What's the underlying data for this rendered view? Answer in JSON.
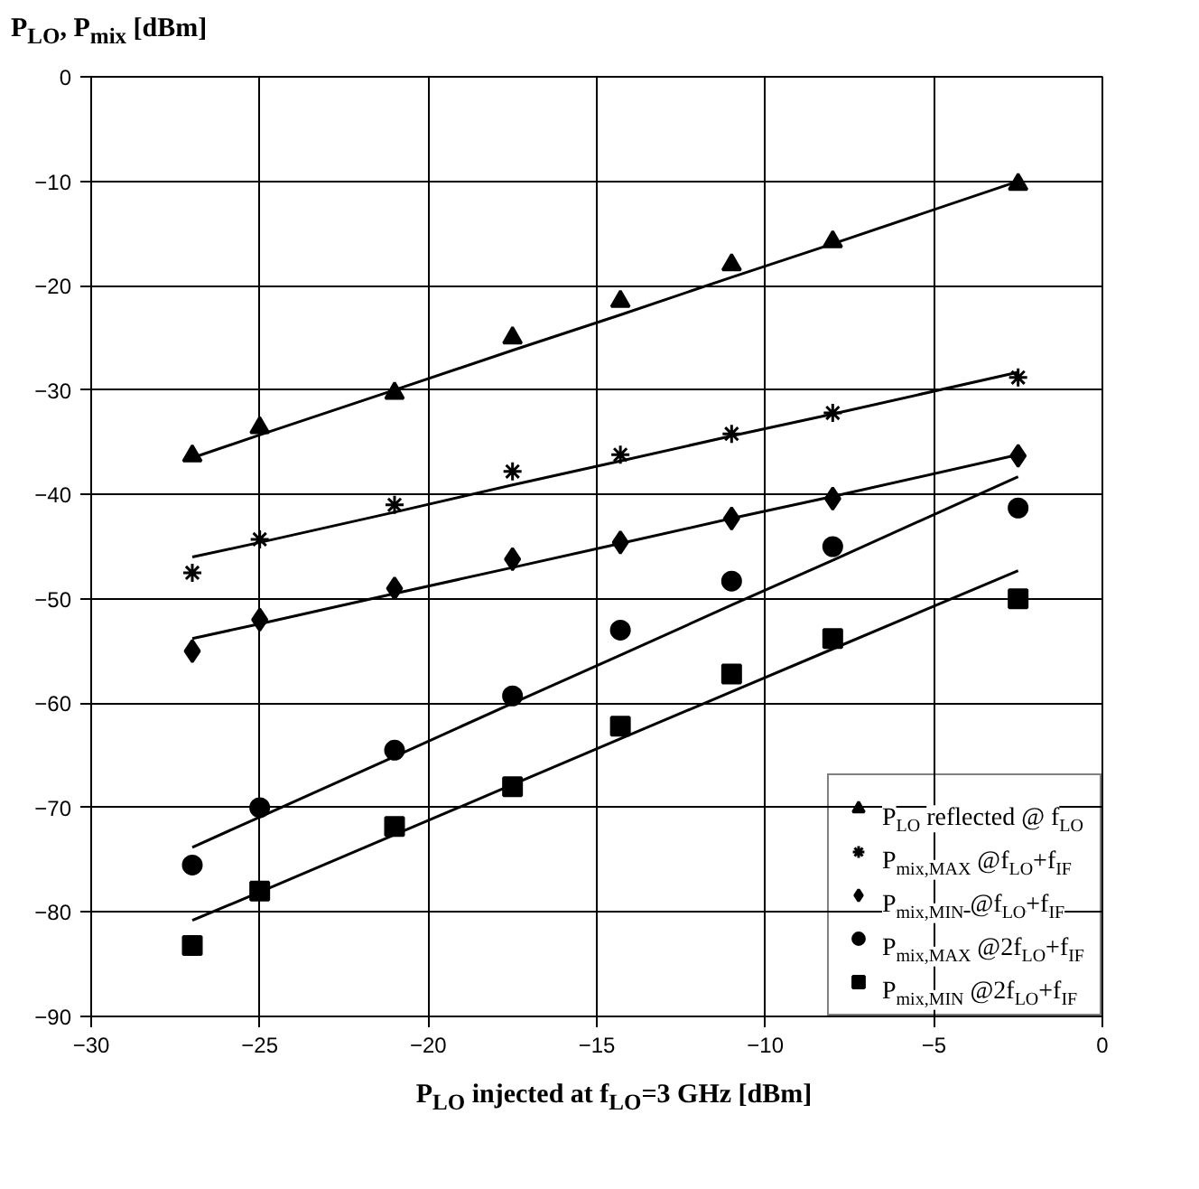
{
  "chart_data": {
    "type": "scatter",
    "ylabel": "P$_{LO}$, P$_{mix}$ [dBm]",
    "xlabel": "P$_{LO}$ injected at f$_{LO}$=3 GHz [dBm]",
    "x": [
      -27,
      -25,
      -21,
      -17.5,
      -14.3,
      -11,
      -8,
      -2.5
    ],
    "xlim": [
      -30,
      0
    ],
    "xticks": [
      -30,
      -25,
      -20,
      -15,
      -10,
      -5,
      0
    ],
    "ylim": [
      -90,
      0
    ],
    "yticks": [
      -90,
      -80,
      -70,
      -60,
      -50,
      -40,
      -30,
      -20,
      -10,
      0
    ],
    "grid": true,
    "legend": "bottom right",
    "series": [
      {
        "name": "P$_{LO}$ reflected @ f$_{LO}$",
        "color": "#000000",
        "marker": "triangle",
        "values": [
          -36.3,
          -33.6,
          -30.3,
          -25,
          -21.5,
          -18,
          -15.8,
          -10.3
        ]
      },
      {
        "name": "P$_{mix,MAX}$ @f$_{LO}$+f$_{IF}$",
        "color": "#000000",
        "marker": "cross",
        "values": [
          -47.5,
          -44.3,
          -41,
          -37.8,
          -36.2,
          -34.2,
          -32.2,
          -28.8
        ]
      },
      {
        "name": "P$_{mix,MIN}$ @f$_{LO}$+f$_{IF}$",
        "color": "#000000",
        "marker": "diamond",
        "values": [
          -55,
          -52,
          -49,
          -46.2,
          -44.6,
          -42.3,
          -40.4,
          -36.3
        ]
      },
      {
        "name": "P$_{mix,MAX}$ @2f$_{LO}$+f$_{IF}$",
        "color": "#000000",
        "marker": "circle",
        "values": [
          -75.5,
          -70,
          -64.5,
          -59.3,
          -53,
          -48.3,
          -45,
          -41.3
        ]
      },
      {
        "name": "P$_{mix,MIN}$ @2f$_{LO}$+f$_{IF}$",
        "color": "#000000",
        "marker": "square",
        "values": [
          -83.2,
          -78,
          -71.8,
          -68,
          -62.2,
          -57.2,
          -53.8,
          -50
        ]
      },
      {
        "type": "line",
        "color": "#000000",
        "values": [
          -36.5,
          -34.3,
          -30,
          -26.2,
          -22.8,
          -19.2,
          -16,
          -10
        ]
      },
      {
        "type": "line",
        "color": "#000000",
        "values": [
          -46,
          -44.6,
          -41.7,
          -39.1,
          -36.8,
          -34.4,
          -32.3,
          -28.3
        ]
      },
      {
        "type": "line",
        "color": "#000000",
        "values": [
          -53.8,
          -52.4,
          -49.5,
          -47,
          -44.7,
          -42.3,
          -40.2,
          -36.2
        ]
      },
      {
        "type": "line",
        "color": "#000000",
        "values": [
          -73.8,
          -70.9,
          -65.1,
          -60,
          -55.4,
          -50.6,
          -46.3,
          -38.3
        ]
      },
      {
        "type": "line",
        "color": "#000000",
        "values": [
          -80.8,
          -78.1,
          -72.6,
          -67.8,
          -63.4,
          -58.9,
          -54.8,
          -47.3
        ]
      }
    ]
  }
}
